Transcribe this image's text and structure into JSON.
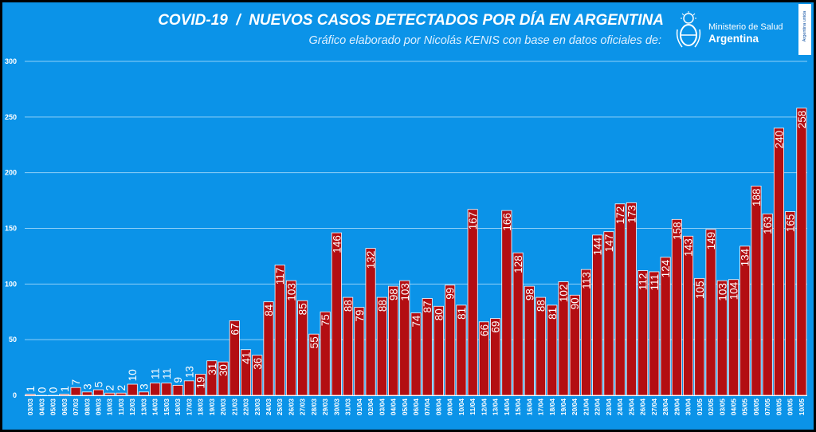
{
  "header": {
    "title": "COVID-19  /  NUEVOS CASOS DETECTADOS POR DÍA EN ARGENTINA",
    "subtitle": "Gráfico elaborado por Nicolás KENIS con base en datos oficiales de:",
    "logo_line1": "Ministerio de Salud",
    "logo_line2": "Argentina",
    "side_tag": "Argentina unida"
  },
  "colors": {
    "background": "#0b93e8",
    "bar_fill": "#b30e12",
    "bar_stroke": "#ffffff",
    "gridline": "#8fd0f7",
    "text": "#ffffff"
  },
  "chart_data": {
    "type": "bar",
    "title": "COVID-19  /  NUEVOS CASOS DETECTADOS POR DÍA EN ARGENTINA",
    "xlabel": "",
    "ylabel": "",
    "ylim": [
      0,
      300
    ],
    "yticks": [
      0,
      50,
      100,
      150,
      200,
      250,
      300
    ],
    "grid": true,
    "data_labels": true,
    "categories": [
      "03/03",
      "04/03",
      "05/03",
      "06/03",
      "07/03",
      "08/03",
      "09/03",
      "10/03",
      "11/03",
      "12/03",
      "13/03",
      "14/03",
      "15/03",
      "16/03",
      "17/03",
      "18/03",
      "19/03",
      "20/03",
      "21/03",
      "22/03",
      "23/03",
      "24/03",
      "25/03",
      "26/03",
      "27/03",
      "28/03",
      "29/03",
      "30/03",
      "31/03",
      "01/04",
      "02/04",
      "03/04",
      "04/04",
      "05/04",
      "06/04",
      "07/04",
      "08/04",
      "09/04",
      "10/04",
      "11/04",
      "12/04",
      "13/04",
      "14/04",
      "15/04",
      "16/04",
      "17/04",
      "18/04",
      "19/04",
      "20/04",
      "21/04",
      "22/04",
      "23/04",
      "24/04",
      "25/04",
      "26/04",
      "27/04",
      "28/04",
      "29/04",
      "30/04",
      "01/05",
      "02/05",
      "03/05",
      "04/05",
      "05/05",
      "06/05",
      "07/05",
      "08/05",
      "09/05",
      "10/05"
    ],
    "values": [
      1,
      0,
      0,
      1,
      7,
      3,
      5,
      2,
      2,
      10,
      3,
      11,
      11,
      9,
      13,
      19,
      31,
      30,
      67,
      41,
      36,
      84,
      117,
      103,
      85,
      55,
      75,
      146,
      88,
      79,
      132,
      88,
      98,
      103,
      74,
      87,
      80,
      99,
      81,
      167,
      66,
      69,
      166,
      128,
      98,
      88,
      81,
      102,
      90,
      113,
      144,
      147,
      172,
      173,
      112,
      111,
      124,
      158,
      143,
      105,
      149,
      103,
      104,
      134,
      188,
      163,
      240,
      165,
      258
    ]
  }
}
